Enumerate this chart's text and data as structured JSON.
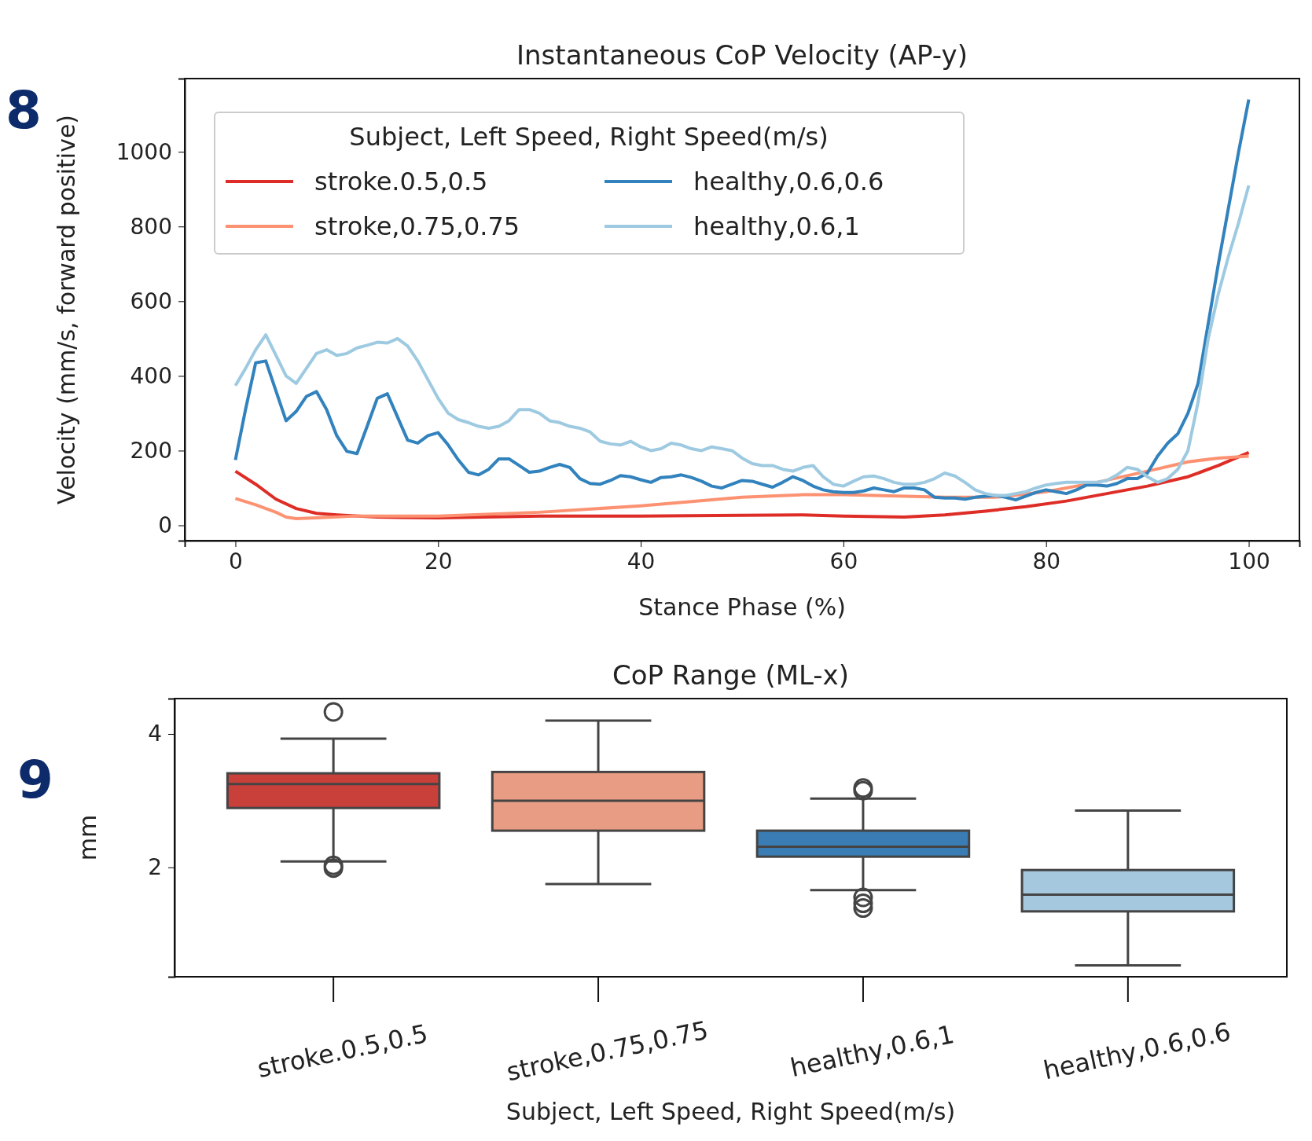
{
  "chart_data": [
    {
      "type": "line",
      "title": "Instantaneous CoP Velocity (AP-y)",
      "xlabel": "Stance Phase (%)",
      "ylabel": "Velocity (mm/s, forward positive)",
      "legend_title": "Subject, Left Speed, Right Speed(m/s)",
      "legend": "top left",
      "annotations": [
        "8"
      ],
      "xlim": [
        -5,
        105
      ],
      "ylim": [
        -41,
        1196
      ],
      "xticks": [
        0,
        20,
        40,
        60,
        80,
        100
      ],
      "yticks": [
        0,
        200,
        400,
        600,
        800,
        1000
      ],
      "series": [
        {
          "name": "stroke.0.5,0.5",
          "color": "#de2d26",
          "x": [
            0,
            2,
            4,
            6,
            8,
            10,
            14,
            20,
            30,
            40,
            50,
            56,
            60,
            66,
            70,
            74,
            78,
            82,
            86,
            90,
            94,
            97,
            100
          ],
          "values": [
            145,
            110,
            70,
            45,
            32,
            28,
            22,
            20,
            25,
            25,
            27,
            28,
            25,
            22,
            28,
            38,
            50,
            65,
            85,
            105,
            130,
            160,
            195
          ]
        },
        {
          "name": "stroke,0.75,0.75",
          "color": "#fc9272",
          "x": [
            0,
            2,
            4,
            5,
            6,
            8,
            12,
            20,
            30,
            40,
            50,
            56,
            60,
            70,
            75,
            80,
            85,
            90,
            94,
            97,
            100
          ],
          "values": [
            72,
            55,
            35,
            22,
            18,
            20,
            25,
            25,
            35,
            52,
            75,
            82,
            82,
            75,
            75,
            90,
            115,
            145,
            170,
            180,
            185
          ]
        },
        {
          "name": "healthy,0.6,0.6",
          "color": "#3182bd",
          "x": [
            0,
            1,
            2,
            3,
            4,
            5,
            6,
            7,
            8,
            9,
            10,
            11,
            12,
            13,
            14,
            15,
            16,
            17,
            18,
            19,
            20,
            21,
            22,
            23,
            24,
            25,
            26,
            27,
            28,
            29,
            30,
            31,
            32,
            33,
            34,
            35,
            36,
            37,
            38,
            39,
            40,
            41,
            42,
            43,
            44,
            45,
            46,
            47,
            48,
            49,
            50,
            51,
            52,
            53,
            54,
            55,
            56,
            57,
            58,
            59,
            60,
            61,
            62,
            63,
            64,
            65,
            66,
            67,
            68,
            69,
            70,
            71,
            72,
            73,
            74,
            75,
            76,
            77,
            78,
            79,
            80,
            81,
            82,
            83,
            84,
            85,
            86,
            87,
            88,
            89,
            90,
            91,
            92,
            93,
            94,
            95,
            96,
            97,
            98,
            99,
            100
          ],
          "values": [
            175,
            310,
            435,
            440,
            360,
            280,
            305,
            345,
            358,
            310,
            240,
            198,
            192,
            265,
            340,
            352,
            290,
            228,
            220,
            240,
            248,
            215,
            175,
            142,
            135,
            150,
            178,
            178,
            160,
            142,
            145,
            155,
            163,
            155,
            125,
            112,
            110,
            120,
            133,
            130,
            122,
            115,
            128,
            130,
            135,
            128,
            118,
            105,
            100,
            110,
            120,
            118,
            110,
            102,
            115,
            130,
            120,
            105,
            95,
            90,
            88,
            88,
            92,
            100,
            95,
            90,
            100,
            100,
            95,
            75,
            73,
            73,
            70,
            75,
            78,
            80,
            75,
            68,
            78,
            88,
            95,
            90,
            85,
            95,
            108,
            108,
            105,
            112,
            125,
            125,
            140,
            185,
            220,
            245,
            300,
            380,
            540,
            700,
            850,
            1000,
            1140
          ]
        },
        {
          "name": "healthy,0.6,1",
          "color": "#9ecae1",
          "x": [
            0,
            1,
            2,
            3,
            4,
            5,
            6,
            7,
            8,
            9,
            10,
            11,
            12,
            13,
            14,
            15,
            16,
            17,
            18,
            19,
            20,
            21,
            22,
            23,
            24,
            25,
            26,
            27,
            28,
            29,
            30,
            31,
            32,
            33,
            34,
            35,
            36,
            37,
            38,
            39,
            40,
            41,
            42,
            43,
            44,
            45,
            46,
            47,
            48,
            49,
            50,
            51,
            52,
            53,
            54,
            55,
            56,
            57,
            58,
            59,
            60,
            61,
            62,
            63,
            64,
            65,
            66,
            67,
            68,
            69,
            70,
            71,
            72,
            73,
            74,
            75,
            76,
            77,
            78,
            79,
            80,
            81,
            82,
            83,
            84,
            85,
            86,
            87,
            88,
            89,
            90,
            91,
            92,
            93,
            94,
            95,
            96,
            97,
            98,
            99,
            100
          ],
          "values": [
            374,
            420,
            470,
            510,
            455,
            400,
            380,
            420,
            460,
            470,
            455,
            460,
            475,
            482,
            490,
            488,
            500,
            480,
            440,
            390,
            340,
            300,
            283,
            275,
            265,
            260,
            265,
            280,
            310,
            310,
            300,
            280,
            275,
            265,
            260,
            250,
            225,
            218,
            215,
            225,
            210,
            200,
            205,
            220,
            215,
            205,
            200,
            210,
            205,
            200,
            180,
            165,
            160,
            160,
            150,
            145,
            155,
            160,
            130,
            110,
            105,
            118,
            130,
            132,
            125,
            115,
            110,
            110,
            115,
            125,
            140,
            132,
            115,
            95,
            85,
            80,
            80,
            85,
            90,
            100,
            108,
            112,
            115,
            115,
            115,
            115,
            120,
            135,
            155,
            150,
            130,
            115,
            125,
            150,
            200,
            330,
            500,
            620,
            720,
            810,
            910
          ]
        }
      ]
    },
    {
      "type": "box",
      "title": "CoP Range (ML-x)",
      "xlabel": "Subject, Left Speed, Right Speed(m/s)",
      "ylabel": "mm",
      "annotations": [
        "9"
      ],
      "categories": [
        "stroke.0.5,0.5",
        "stroke,0.75,0.75",
        "healthy,0.6,1",
        "healthy,0.6,0.6"
      ],
      "colors": [
        "#c9403a",
        "#e99c84",
        "#3a7db5",
        "#a6c8df"
      ],
      "ylim": [
        0.36,
        4.53
      ],
      "yticks": [
        2,
        4
      ],
      "boxes": [
        {
          "low": 2.09,
          "q1": 2.89,
          "median": 3.25,
          "q3": 3.41,
          "high": 3.93,
          "outliers": [
            4.33,
            2.03,
            1.99
          ]
        },
        {
          "low": 1.75,
          "q1": 2.55,
          "median": 3.0,
          "q3": 3.43,
          "high": 4.2
        },
        {
          "low": 1.66,
          "q1": 2.16,
          "median": 2.31,
          "q3": 2.55,
          "high": 3.03,
          "outliers": [
            3.19,
            3.15,
            1.55,
            1.46,
            1.39
          ]
        },
        {
          "low": 0.53,
          "q1": 1.34,
          "median": 1.59,
          "q3": 1.96,
          "high": 2.85
        }
      ]
    }
  ]
}
